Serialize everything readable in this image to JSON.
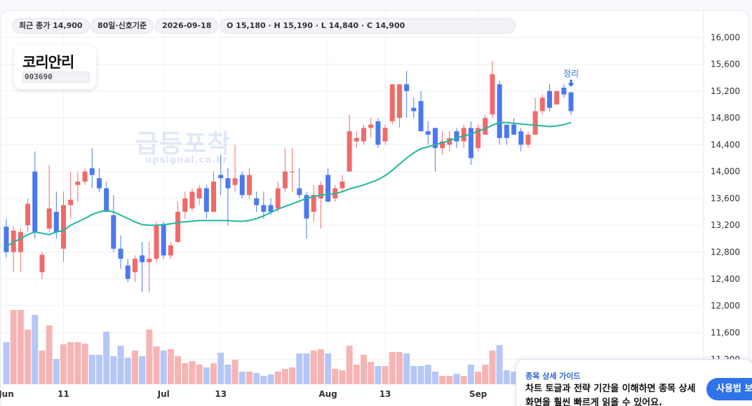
{
  "header": {
    "chips": [
      "최근 종가 14,900",
      "80일·신호기준",
      "2026-09-18",
      "O 15,180 · H 15,190 · L 14,840 · C 14,900"
    ]
  },
  "stock": {
    "name": "코리안리",
    "code": "003690"
  },
  "watermark": {
    "title": "급등포착",
    "site": "upsignal.co.kr"
  },
  "guide": {
    "title": "종목 상세 가이드",
    "body": "차트 토글과 전략 기간을 이해하면 종목 상세 화면을 훨씬 빠르게 읽을 수 있어요.",
    "button": "사용법 보기"
  },
  "chart_data": {
    "type": "candlestick",
    "categories": [
      "Jun",
      null,
      null,
      null,
      null,
      null,
      null,
      null,
      "11",
      null,
      null,
      null,
      null,
      null,
      null,
      null,
      null,
      null,
      null,
      null,
      null,
      null,
      "Jul",
      null,
      null,
      null,
      null,
      null,
      null,
      null,
      "13",
      null,
      null,
      null,
      null,
      null,
      null,
      null,
      null,
      null,
      null,
      null,
      null,
      null,
      null,
      "Aug",
      null,
      null,
      null,
      null,
      null,
      null,
      null,
      "13",
      null,
      null,
      null,
      null,
      null,
      null,
      null,
      null,
      null,
      null,
      null,
      null,
      "Sep",
      null,
      null,
      null,
      null,
      null,
      null,
      null,
      null,
      null,
      null,
      null,
      null,
      null
    ],
    "open": [
      13180,
      12800,
      12800,
      13200,
      14000,
      12500,
      13150,
      13400,
      12850,
      13500,
      13800,
      13850,
      14050,
      13900,
      13750,
      13350,
      12850,
      12600,
      12500,
      12750,
      12650,
      12700,
      13200,
      12750,
      12950,
      13400,
      13450,
      13600,
      13750,
      13400,
      13950,
      13900,
      13800,
      13950,
      13650,
      13600,
      13500,
      13500,
      13450,
      13750,
      14000,
      13750,
      13650,
      13400,
      13600,
      13950,
      13600,
      13750,
      14000,
      14450,
      14450,
      14650,
      14750,
      14450,
      14750,
      14800,
      15300,
      14950,
      15050,
      14600,
      14650,
      14350,
      14400,
      14600,
      14450,
      14650,
      14350,
      14550,
      14850,
      15300,
      14700,
      14700,
      14600,
      14400,
      14550,
      14900,
      15200,
      15000,
      15250,
      15180
    ],
    "high": [
      13300,
      13180,
      13150,
      13600,
      14300,
      12800,
      14100,
      13700,
      13700,
      14000,
      14000,
      14050,
      14350,
      14050,
      13850,
      13650,
      13050,
      12700,
      12750,
      12950,
      12950,
      13250,
      13250,
      12950,
      13550,
      13700,
      13750,
      13800,
      13800,
      14000,
      14250,
      14050,
      14400,
      14000,
      14050,
      13700,
      13700,
      13600,
      13850,
      14350,
      14350,
      14050,
      13700,
      13800,
      13850,
      14050,
      13800,
      13950,
      14850,
      14600,
      14700,
      14800,
      14800,
      14700,
      15300,
      15300,
      15500,
      15100,
      15200,
      14750,
      14650,
      14600,
      14600,
      14650,
      14700,
      14750,
      14700,
      14850,
      15650,
      15350,
      14700,
      14800,
      14650,
      14600,
      15100,
      15150,
      15300,
      15200,
      15300,
      15190
    ],
    "low": [
      12720,
      12500,
      12500,
      13100,
      13000,
      12400,
      13100,
      13000,
      12650,
      13300,
      13550,
      13800,
      13750,
      13700,
      13400,
      12800,
      12550,
      12350,
      12350,
      12200,
      12200,
      12650,
      12700,
      12700,
      12950,
      13300,
      13400,
      13500,
      13300,
      13400,
      13650,
      13200,
      13700,
      13600,
      13600,
      13400,
      13300,
      13350,
      13400,
      13700,
      13700,
      13600,
      13000,
      13250,
      13150,
      13550,
      13550,
      13700,
      14000,
      14350,
      14400,
      14500,
      14350,
      14400,
      14700,
      14650,
      14800,
      14800,
      14600,
      14400,
      14000,
      14250,
      14300,
      14350,
      14350,
      14100,
      14300,
      14550,
      14800,
      14400,
      14400,
      14550,
      14300,
      14350,
      14550,
      14850,
      14900,
      15000,
      15100,
      14840
    ],
    "close": [
      12800,
      13120,
      13100,
      13520,
      13100,
      12760,
      13450,
      13100,
      13500,
      13580,
      13850,
      14000,
      13950,
      13750,
      13400,
      12850,
      12700,
      12400,
      12700,
      12650,
      12700,
      13200,
      12750,
      12900,
      13400,
      13600,
      13700,
      13750,
      13400,
      13850,
      13900,
      13750,
      13900,
      13650,
      13950,
      13500,
      13400,
      13400,
      13750,
      14000,
      14000,
      13650,
      13300,
      13650,
      13800,
      13550,
      13750,
      13850,
      14600,
      14500,
      14650,
      14700,
      14400,
      14650,
      15300,
      15300,
      15200,
      14900,
      14600,
      14550,
      14350,
      14450,
      14500,
      14450,
      14650,
      14200,
      14650,
      14800,
      15450,
      14500,
      14500,
      14550,
      14400,
      14550,
      14900,
      15100,
      14950,
      15200,
      15150,
      14900
    ],
    "volume": [
      60,
      106,
      106,
      78,
      99,
      48,
      84,
      36,
      57,
      60,
      60,
      58,
      42,
      42,
      75,
      40,
      55,
      38,
      48,
      40,
      78,
      54,
      48,
      50,
      40,
      30,
      33,
      28,
      24,
      30,
      45,
      28,
      35,
      18,
      18,
      16,
      12,
      14,
      18,
      22,
      24,
      44,
      44,
      48,
      50,
      44,
      22,
      20,
      55,
      28,
      42,
      32,
      26,
      26,
      46,
      46,
      44,
      26,
      26,
      28,
      18,
      12,
      12,
      15,
      12,
      28,
      18,
      28,
      48,
      56,
      20,
      18,
      16,
      20,
      22,
      24,
      22,
      20,
      18,
      26
    ],
    "ma": [
      12880,
      12950,
      13000,
      13060,
      13100,
      13080,
      13060,
      13100,
      13120,
      13200,
      13250,
      13300,
      13360,
      13400,
      13420,
      13400,
      13350,
      13300,
      13250,
      13210,
      13200,
      13200,
      13210,
      13220,
      13240,
      13250,
      13260,
      13270,
      13270,
      13270,
      13270,
      13270,
      13260,
      13260,
      13270,
      13300,
      13340,
      13390,
      13440,
      13480,
      13520,
      13560,
      13600,
      13630,
      13650,
      13660,
      13670,
      13700,
      13740,
      13770,
      13800,
      13840,
      13880,
      13940,
      14020,
      14110,
      14200,
      14280,
      14340,
      14370,
      14400,
      14430,
      14460,
      14500,
      14530,
      14560,
      14600,
      14640,
      14690,
      14730,
      14730,
      14720,
      14710,
      14700,
      14690,
      14680,
      14670,
      14680,
      14700,
      14730
    ],
    "annotation": "정리",
    "ylim": [
      10830,
      16400
    ],
    "yticks": [
      {
        "value": 11200,
        "label": "11,200"
      },
      {
        "value": 11600,
        "label": "11,600"
      },
      {
        "value": 12000,
        "label": "12,000"
      },
      {
        "value": 12400,
        "label": "12,400"
      },
      {
        "value": 12800,
        "label": "12,800"
      },
      {
        "value": 13200,
        "label": "13,200"
      },
      {
        "value": 13600,
        "label": "13,600"
      },
      {
        "value": 14000,
        "label": "14,000"
      },
      {
        "value": 14400,
        "label": "14,400"
      },
      {
        "value": 14800,
        "label": "14,800"
      },
      {
        "value": 15200,
        "label": "15,200"
      },
      {
        "value": 15600,
        "label": "15,600"
      },
      {
        "value": 16000,
        "label": "16,000"
      }
    ],
    "grid": true,
    "up_color": "#f06a6a",
    "down_color": "#4a78ef",
    "up_volume_color": "#f7b4b4",
    "down_volume_color": "#b5c7f6",
    "ma_color": "#1fb89a",
    "annotation_color": "#2f6fd8"
  }
}
